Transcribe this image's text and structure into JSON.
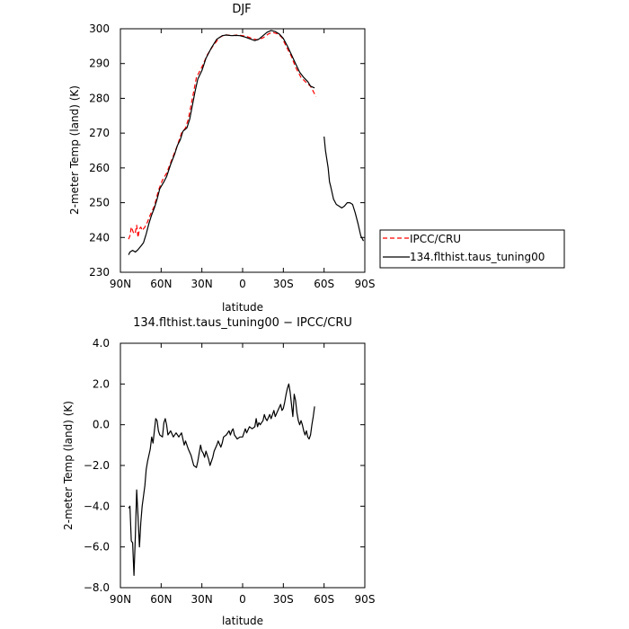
{
  "chart_data": [
    {
      "type": "line",
      "title": "DJF",
      "xlabel": "latitude",
      "ylabel": "2-meter Temp (land) (K)",
      "xlim": [
        90,
        -90
      ],
      "ylim": [
        230,
        300
      ],
      "x_ticks": [
        90,
        60,
        30,
        0,
        -30,
        -60,
        -90
      ],
      "x_tick_labels": [
        "90N",
        "60N",
        "30N",
        "0",
        "30S",
        "60S",
        "90S"
      ],
      "y_ticks": [
        230,
        240,
        250,
        260,
        270,
        280,
        290,
        300
      ],
      "y_tick_labels": [
        "230",
        "240",
        "250",
        "260",
        "270",
        "280",
        "290",
        "300"
      ],
      "grid": false,
      "legend_position": "right",
      "series": [
        {
          "name": "IPCC/CRU",
          "color": "#ff0000",
          "dash": "dashed",
          "segments": [
            [
              [
                84,
                239.5
              ],
              [
                83,
                240.5
              ],
              [
                82,
                243.0
              ],
              [
                81,
                242.0
              ],
              [
                80,
                241.0
              ],
              [
                79,
                241.5
              ],
              [
                78,
                243.5
              ],
              [
                77,
                240.0
              ],
              [
                76,
                242.5
              ],
              [
                75,
                243.0
              ],
              [
                74,
                242.0
              ],
              [
                72,
                243.0
              ],
              [
                70,
                244.5
              ],
              [
                68,
                246.5
              ],
              [
                65,
                249.0
              ],
              [
                62,
                253.5
              ],
              [
                59,
                256.5
              ],
              [
                56,
                258.5
              ],
              [
                52,
                262.5
              ],
              [
                48,
                266.5
              ],
              [
                45,
                270.0
              ],
              [
                42,
                271.5
              ],
              [
                40,
                274.0
              ],
              [
                37,
                280.0
              ],
              [
                34,
                286.0
              ],
              [
                30,
                289.0
              ],
              [
                26,
                292.5
              ],
              [
                22,
                295.0
              ],
              [
                17,
                297.5
              ],
              [
                13,
                298.3
              ],
              [
                8,
                298.0
              ],
              [
                4,
                298.2
              ],
              [
                0,
                298.0
              ],
              [
                -3,
                297.8
              ],
              [
                -7,
                297.2
              ],
              [
                -11,
                296.8
              ],
              [
                -15,
                297.4
              ],
              [
                -19,
                298.5
              ],
              [
                -22,
                299.0
              ],
              [
                -26,
                298.5
              ],
              [
                -29,
                297.5
              ],
              [
                -32,
                295.0
              ],
              [
                -36,
                292.0
              ],
              [
                -39,
                289.0
              ],
              [
                -43,
                286.0
              ],
              [
                -47,
                284.5
              ],
              [
                -50,
                283.5
              ],
              [
                -52,
                282.0
              ],
              [
                -54,
                280.5
              ]
            ]
          ]
        },
        {
          "name": "134.flthist.taus_tuning00",
          "color": "#000000",
          "dash": "solid",
          "segments": [
            [
              [
                84,
                235.0
              ],
              [
                83,
                235.8
              ],
              [
                81,
                236.3
              ],
              [
                79,
                235.8
              ],
              [
                77,
                236.5
              ],
              [
                75,
                237.5
              ],
              [
                73,
                238.5
              ],
              [
                71,
                241.0
              ],
              [
                69,
                244.0
              ],
              [
                67,
                246.5
              ],
              [
                65,
                248.5
              ],
              [
                63,
                251.0
              ],
              [
                61,
                254.0
              ],
              [
                58,
                256.0
              ],
              [
                56,
                257.5
              ],
              [
                53,
                261.0
              ],
              [
                50,
                264.0
              ],
              [
                48,
                266.5
              ],
              [
                46,
                268.0
              ],
              [
                44,
                270.5
              ],
              [
                41,
                271.5
              ],
              [
                39,
                274.0
              ],
              [
                37,
                278.0
              ],
              [
                35,
                282.0
              ],
              [
                33,
                285.5
              ],
              [
                30,
                288.0
              ],
              [
                27,
                291.5
              ],
              [
                23,
                294.5
              ],
              [
                19,
                297.0
              ],
              [
                15,
                298.0
              ],
              [
                12,
                298.2
              ],
              [
                8,
                298.0
              ],
              [
                5,
                298.1
              ],
              [
                2,
                298.0
              ],
              [
                -2,
                297.6
              ],
              [
                -6,
                297.0
              ],
              [
                -9,
                296.6
              ],
              [
                -12,
                297.0
              ],
              [
                -15,
                298.0
              ],
              [
                -18,
                299.0
              ],
              [
                -21,
                299.5
              ],
              [
                -24,
                299.2
              ],
              [
                -27,
                298.5
              ],
              [
                -30,
                297.2
              ],
              [
                -33,
                295.0
              ],
              [
                -36,
                292.5
              ],
              [
                -39,
                290.0
              ],
              [
                -42,
                287.5
              ],
              [
                -45,
                286.0
              ],
              [
                -48,
                284.8
              ],
              [
                -50,
                283.5
              ],
              [
                -53,
                283.0
              ]
            ],
            [
              [
                -60,
                269.0
              ],
              [
                -61,
                265.0
              ],
              [
                -63,
                260.0
              ],
              [
                -64,
                256.0
              ],
              [
                -65,
                254.5
              ],
              [
                -67,
                251.0
              ],
              [
                -69,
                249.5
              ],
              [
                -71,
                249.0
              ],
              [
                -73,
                248.5
              ],
              [
                -75,
                249.0
              ],
              [
                -77,
                250.0
              ],
              [
                -79,
                250.0
              ],
              [
                -81,
                249.5
              ],
              [
                -83,
                247.0
              ],
              [
                -85,
                244.0
              ],
              [
                -87,
                240.5
              ],
              [
                -89,
                239.0
              ]
            ]
          ]
        }
      ]
    },
    {
      "type": "line",
      "title": "134.flthist.taus_tuning00 − IPCC/CRU",
      "xlabel": "latitude",
      "ylabel": "2-meter Temp (land) (K)",
      "xlim": [
        90,
        -90
      ],
      "ylim": [
        -8,
        4
      ],
      "x_ticks": [
        90,
        60,
        30,
        0,
        -30,
        -60,
        -90
      ],
      "x_tick_labels": [
        "90N",
        "60N",
        "30N",
        "0",
        "30S",
        "60S",
        "90S"
      ],
      "y_ticks": [
        4,
        2,
        0,
        -2,
        -4,
        -6,
        -8
      ],
      "y_tick_labels": [
        "4.0",
        "2.0",
        "0.0",
        "−2.0",
        "−4.0",
        "−6.0",
        "−8.0"
      ],
      "grid": false,
      "series": [
        {
          "color": "#000000",
          "dash": "solid",
          "segments": [
            [
              [
                84,
                -4.1
              ],
              [
                83,
                -4.0
              ],
              [
                82,
                -5.7
              ],
              [
                81,
                -5.8
              ],
              [
                80,
                -7.4
              ],
              [
                79,
                -5.5
              ],
              [
                78,
                -3.2
              ],
              [
                77,
                -4.5
              ],
              [
                76,
                -6.0
              ],
              [
                75,
                -4.8
              ],
              [
                74,
                -4.0
              ],
              [
                72,
                -3.0
              ],
              [
                71,
                -2.2
              ],
              [
                70,
                -1.8
              ],
              [
                68,
                -1.2
              ],
              [
                67,
                -0.6
              ],
              [
                66,
                -0.9
              ],
              [
                65,
                -0.3
              ],
              [
                64,
                0.3
              ],
              [
                63,
                0.2
              ],
              [
                62,
                -0.3
              ],
              [
                61,
                -0.5
              ],
              [
                59,
                -0.6
              ],
              [
                58,
                0.1
              ],
              [
                57,
                0.3
              ],
              [
                56,
                0.0
              ],
              [
                55,
                -0.5
              ],
              [
                53,
                -0.3
              ],
              [
                51,
                -0.6
              ],
              [
                49,
                -0.4
              ],
              [
                47,
                -0.6
              ],
              [
                45,
                -0.4
              ],
              [
                43,
                -1.0
              ],
              [
                42,
                -0.8
              ],
              [
                40,
                -1.2
              ],
              [
                38,
                -1.5
              ],
              [
                36,
                -2.0
              ],
              [
                34,
                -2.1
              ],
              [
                33,
                -1.8
              ],
              [
                31,
                -1.0
              ],
              [
                30,
                -1.3
              ],
              [
                29,
                -1.4
              ],
              [
                28,
                -1.6
              ],
              [
                27,
                -1.3
              ],
              [
                25,
                -1.7
              ],
              [
                24,
                -2.0
              ],
              [
                22,
                -1.6
              ],
              [
                21,
                -1.3
              ],
              [
                19,
                -1.0
              ],
              [
                18,
                -0.8
              ],
              [
                16,
                -1.1
              ],
              [
                15,
                -0.9
              ],
              [
                14,
                -0.6
              ],
              [
                12,
                -0.5
              ],
              [
                10,
                -0.3
              ],
              [
                9,
                -0.5
              ],
              [
                8,
                -0.3
              ],
              [
                7,
                -0.2
              ],
              [
                6,
                -0.5
              ],
              [
                4,
                -0.7
              ],
              [
                2,
                -0.6
              ],
              [
                0,
                -0.6
              ],
              [
                -2,
                -0.2
              ],
              [
                -3,
                -0.4
              ],
              [
                -5,
                -0.1
              ],
              [
                -7,
                -0.2
              ],
              [
                -9,
                -0.1
              ],
              [
                -10,
                0.3
              ],
              [
                -11,
                -0.1
              ],
              [
                -12,
                0.1
              ],
              [
                -13,
                0.0
              ],
              [
                -15,
                0.2
              ],
              [
                -16,
                0.5
              ],
              [
                -17,
                0.3
              ],
              [
                -18,
                0.2
              ],
              [
                -20,
                0.5
              ],
              [
                -21,
                0.3
              ],
              [
                -23,
                0.7
              ],
              [
                -24,
                0.4
              ],
              [
                -26,
                0.7
              ],
              [
                -28,
                1.0
              ],
              [
                -29,
                0.7
              ],
              [
                -30,
                0.8
              ],
              [
                -31,
                1.1
              ],
              [
                -32,
                1.5
              ],
              [
                -33,
                1.8
              ],
              [
                -34,
                2.0
              ],
              [
                -35,
                1.6
              ],
              [
                -36,
                1.0
              ],
              [
                -37,
                0.4
              ],
              [
                -38,
                1.5
              ],
              [
                -39,
                1.2
              ],
              [
                -40,
                0.6
              ],
              [
                -41,
                0.2
              ],
              [
                -42,
                0.0
              ],
              [
                -43,
                0.2
              ],
              [
                -44,
                0.0
              ],
              [
                -45,
                -0.3
              ],
              [
                -46,
                -0.5
              ],
              [
                -47,
                -0.3
              ],
              [
                -48,
                -0.6
              ],
              [
                -49,
                -0.7
              ],
              [
                -50,
                -0.5
              ],
              [
                -51,
                0.0
              ],
              [
                -52,
                0.4
              ],
              [
                -53,
                0.9
              ]
            ]
          ]
        }
      ]
    }
  ]
}
